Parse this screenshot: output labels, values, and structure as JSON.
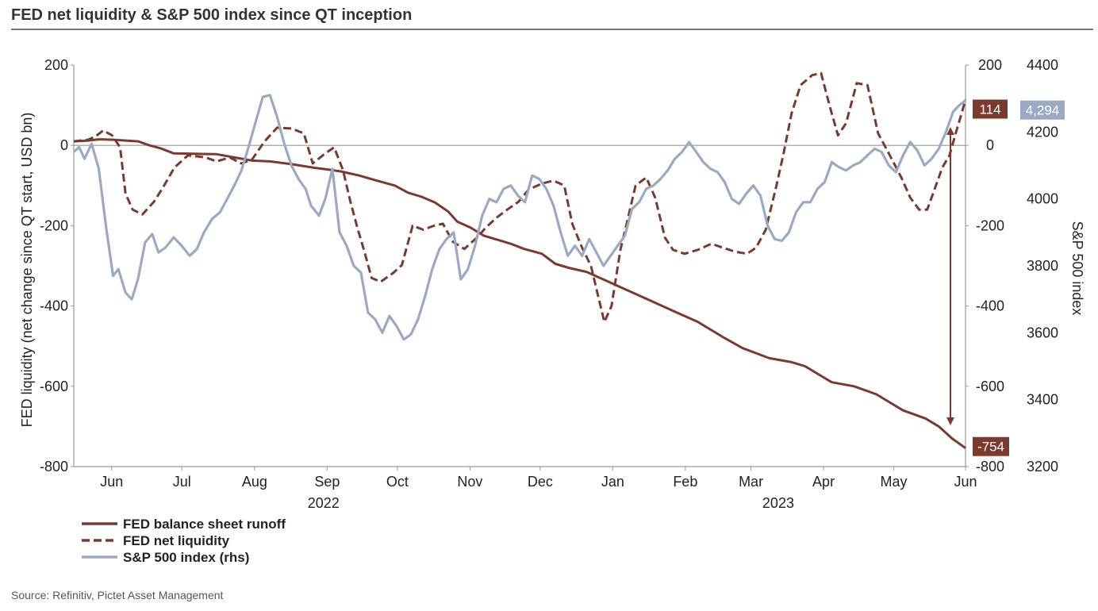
{
  "chart_data": {
    "type": "line",
    "title": "FED net liquidity & S&P 500 index since QT inception",
    "ylabel": "FED liquidity (net change since QT start, USD bn)",
    "y2label": "S&P 500 index",
    "ylim": [
      -800,
      200
    ],
    "y2lim": [
      3200,
      4400
    ],
    "yticks": [
      "200",
      "0",
      "-200",
      "-400",
      "-600",
      "-800"
    ],
    "yticks_right": [
      "200",
      "0",
      "-200",
      "-400",
      "-600",
      "-800"
    ],
    "y2ticks": [
      "4400",
      "4200",
      "4000",
      "3800",
      "3600",
      "3400",
      "3200"
    ],
    "x_months": [
      {
        "label": "Jun",
        "pos": 0.0425
      },
      {
        "label": "Jul",
        "pos": 0.1212
      },
      {
        "label": "Aug",
        "pos": 0.2027
      },
      {
        "label": "Sep",
        "pos": 0.2841
      },
      {
        "label": "Oct",
        "pos": 0.3629
      },
      {
        "label": "Nov",
        "pos": 0.4443
      },
      {
        "label": "Dec",
        "pos": 0.523
      },
      {
        "label": "Jan",
        "pos": 0.6044
      },
      {
        "label": "Feb",
        "pos": 0.6858
      },
      {
        "label": "Mar",
        "pos": 0.7594
      },
      {
        "label": "Apr",
        "pos": 0.8408
      },
      {
        "label": "May",
        "pos": 0.9195
      },
      {
        "label": "Jun",
        "pos": 1.0
      }
    ],
    "x_years": [
      {
        "label": "2022",
        "pos": 0.28
      },
      {
        "label": "2023",
        "pos": 0.79
      }
    ],
    "grid": false,
    "legend_position": "bottom-left",
    "series": [
      {
        "name": "FED balance sheet runoff",
        "axis": "left",
        "style": "solid",
        "color": "#7a3b2e",
        "points": [
          [
            0,
            10
          ],
          [
            0.016,
            12
          ],
          [
            0.028,
            15
          ],
          [
            0.044,
            14
          ],
          [
            0.072,
            10
          ],
          [
            0.085,
            0
          ],
          [
            0.098,
            -8
          ],
          [
            0.112,
            -20
          ],
          [
            0.16,
            -22
          ],
          [
            0.2,
            -38
          ],
          [
            0.22,
            -40
          ],
          [
            0.245,
            -47
          ],
          [
            0.27,
            -56
          ],
          [
            0.285,
            -60
          ],
          [
            0.3,
            -65
          ],
          [
            0.32,
            -75
          ],
          [
            0.34,
            -88
          ],
          [
            0.36,
            -100
          ],
          [
            0.375,
            -118
          ],
          [
            0.39,
            -128
          ],
          [
            0.405,
            -142
          ],
          [
            0.42,
            -165
          ],
          [
            0.43,
            -190
          ],
          [
            0.445,
            -205
          ],
          [
            0.46,
            -225
          ],
          [
            0.49,
            -245
          ],
          [
            0.505,
            -258
          ],
          [
            0.525,
            -270
          ],
          [
            0.54,
            -295
          ],
          [
            0.555,
            -305
          ],
          [
            0.575,
            -315
          ],
          [
            0.6,
            -340
          ],
          [
            0.62,
            -360
          ],
          [
            0.64,
            -380
          ],
          [
            0.66,
            -400
          ],
          [
            0.68,
            -420
          ],
          [
            0.7,
            -440
          ],
          [
            0.715,
            -460
          ],
          [
            0.73,
            -480
          ],
          [
            0.75,
            -505
          ],
          [
            0.78,
            -530
          ],
          [
            0.805,
            -540
          ],
          [
            0.82,
            -550
          ],
          [
            0.835,
            -570
          ],
          [
            0.85,
            -590
          ],
          [
            0.875,
            -600
          ],
          [
            0.9,
            -620
          ],
          [
            0.93,
            -660
          ],
          [
            0.955,
            -680
          ],
          [
            0.97,
            -700
          ],
          [
            0.985,
            -730
          ],
          [
            1.0,
            -754
          ]
        ]
      },
      {
        "name": "FED net liquidity",
        "axis": "left",
        "style": "dashed",
        "color": "#7a3b2e",
        "points": [
          [
            0,
            10
          ],
          [
            0.016,
            14
          ],
          [
            0.024,
            22
          ],
          [
            0.033,
            37
          ],
          [
            0.043,
            25
          ],
          [
            0.052,
            -5
          ],
          [
            0.058,
            -120
          ],
          [
            0.066,
            -160
          ],
          [
            0.077,
            -172
          ],
          [
            0.09,
            -140
          ],
          [
            0.1,
            -105
          ],
          [
            0.113,
            -55
          ],
          [
            0.128,
            -25
          ],
          [
            0.148,
            -30
          ],
          [
            0.16,
            -40
          ],
          [
            0.175,
            -30
          ],
          [
            0.188,
            -45
          ],
          [
            0.2,
            -35
          ],
          [
            0.214,
            10
          ],
          [
            0.228,
            44
          ],
          [
            0.244,
            42
          ],
          [
            0.258,
            30
          ],
          [
            0.268,
            -45
          ],
          [
            0.282,
            -20
          ],
          [
            0.292,
            -5
          ],
          [
            0.302,
            -62
          ],
          [
            0.31,
            -138
          ],
          [
            0.318,
            -205
          ],
          [
            0.326,
            -265
          ],
          [
            0.334,
            -330
          ],
          [
            0.344,
            -340
          ],
          [
            0.358,
            -318
          ],
          [
            0.368,
            -298
          ],
          [
            0.38,
            -200
          ],
          [
            0.392,
            -210
          ],
          [
            0.404,
            -200
          ],
          [
            0.414,
            -195
          ],
          [
            0.425,
            -240
          ],
          [
            0.438,
            -258
          ],
          [
            0.452,
            -230
          ],
          [
            0.462,
            -205
          ],
          [
            0.474,
            -180
          ],
          [
            0.486,
            -160
          ],
          [
            0.499,
            -140
          ],
          [
            0.51,
            -110
          ],
          [
            0.525,
            -95
          ],
          [
            0.538,
            -88
          ],
          [
            0.55,
            -100
          ],
          [
            0.559,
            -195
          ],
          [
            0.57,
            -255
          ],
          [
            0.58,
            -300
          ],
          [
            0.588,
            -375
          ],
          [
            0.595,
            -440
          ],
          [
            0.603,
            -400
          ],
          [
            0.613,
            -260
          ],
          [
            0.62,
            -195
          ],
          [
            0.63,
            -100
          ],
          [
            0.642,
            -80
          ],
          [
            0.652,
            -130
          ],
          [
            0.663,
            -230
          ],
          [
            0.672,
            -260
          ],
          [
            0.685,
            -270
          ],
          [
            0.7,
            -260
          ],
          [
            0.715,
            -245
          ],
          [
            0.728,
            -255
          ],
          [
            0.742,
            -265
          ],
          [
            0.755,
            -270
          ],
          [
            0.765,
            -255
          ],
          [
            0.776,
            -210
          ],
          [
            0.788,
            -100
          ],
          [
            0.796,
            -20
          ],
          [
            0.805,
            80
          ],
          [
            0.815,
            150
          ],
          [
            0.828,
            175
          ],
          [
            0.838,
            180
          ],
          [
            0.848,
            95
          ],
          [
            0.857,
            25
          ],
          [
            0.866,
            55
          ],
          [
            0.878,
            155
          ],
          [
            0.89,
            150
          ],
          [
            0.902,
            30
          ],
          [
            0.914,
            -20
          ],
          [
            0.928,
            -80
          ],
          [
            0.938,
            -130
          ],
          [
            0.948,
            -160
          ],
          [
            0.957,
            -160
          ],
          [
            0.966,
            -105
          ],
          [
            0.974,
            -55
          ],
          [
            0.982,
            -25
          ],
          [
            0.989,
            30
          ],
          [
            0.995,
            75
          ],
          [
            1.0,
            114
          ]
        ]
      },
      {
        "name": "S&P 500 index (rhs)",
        "axis": "right",
        "style": "solid",
        "color": "#9aa9c4",
        "points": [
          [
            0,
            4140
          ],
          [
            0.006,
            4155
          ],
          [
            0.012,
            4120
          ],
          [
            0.02,
            4165
          ],
          [
            0.028,
            4090
          ],
          [
            0.036,
            3920
          ],
          [
            0.044,
            3770
          ],
          [
            0.05,
            3790
          ],
          [
            0.058,
            3720
          ],
          [
            0.065,
            3700
          ],
          [
            0.072,
            3760
          ],
          [
            0.08,
            3870
          ],
          [
            0.088,
            3895
          ],
          [
            0.095,
            3840
          ],
          [
            0.103,
            3855
          ],
          [
            0.112,
            3885
          ],
          [
            0.121,
            3860
          ],
          [
            0.13,
            3830
          ],
          [
            0.138,
            3850
          ],
          [
            0.146,
            3900
          ],
          [
            0.155,
            3940
          ],
          [
            0.164,
            3960
          ],
          [
            0.172,
            4000
          ],
          [
            0.18,
            4040
          ],
          [
            0.188,
            4085
          ],
          [
            0.196,
            4155
          ],
          [
            0.205,
            4240
          ],
          [
            0.212,
            4305
          ],
          [
            0.22,
            4310
          ],
          [
            0.228,
            4245
          ],
          [
            0.236,
            4165
          ],
          [
            0.244,
            4100
          ],
          [
            0.252,
            4060
          ],
          [
            0.26,
            4030
          ],
          [
            0.266,
            3980
          ],
          [
            0.275,
            3950
          ],
          [
            0.282,
            4000
          ],
          [
            0.29,
            4090
          ],
          [
            0.298,
            3900
          ],
          [
            0.306,
            3860
          ],
          [
            0.314,
            3800
          ],
          [
            0.322,
            3780
          ],
          [
            0.33,
            3660
          ],
          [
            0.338,
            3640
          ],
          [
            0.346,
            3600
          ],
          [
            0.354,
            3650
          ],
          [
            0.362,
            3620
          ],
          [
            0.37,
            3580
          ],
          [
            0.378,
            3595
          ],
          [
            0.386,
            3640
          ],
          [
            0.394,
            3710
          ],
          [
            0.402,
            3790
          ],
          [
            0.41,
            3850
          ],
          [
            0.418,
            3880
          ],
          [
            0.426,
            3900
          ],
          [
            0.434,
            3760
          ],
          [
            0.442,
            3790
          ],
          [
            0.45,
            3860
          ],
          [
            0.458,
            3950
          ],
          [
            0.466,
            4000
          ],
          [
            0.474,
            3990
          ],
          [
            0.482,
            4030
          ],
          [
            0.49,
            4040
          ],
          [
            0.498,
            4010
          ],
          [
            0.506,
            3990
          ],
          [
            0.514,
            4070
          ],
          [
            0.522,
            4060
          ],
          [
            0.53,
            4030
          ],
          [
            0.538,
            3980
          ],
          [
            0.546,
            3900
          ],
          [
            0.554,
            3830
          ],
          [
            0.562,
            3860
          ],
          [
            0.57,
            3830
          ],
          [
            0.578,
            3880
          ],
          [
            0.586,
            3840
          ],
          [
            0.594,
            3800
          ],
          [
            0.602,
            3830
          ],
          [
            0.61,
            3860
          ],
          [
            0.618,
            3890
          ],
          [
            0.626,
            3970
          ],
          [
            0.634,
            3990
          ],
          [
            0.642,
            4030
          ],
          [
            0.65,
            4040
          ],
          [
            0.658,
            4060
          ],
          [
            0.666,
            4085
          ],
          [
            0.674,
            4120
          ],
          [
            0.682,
            4140
          ],
          [
            0.69,
            4170
          ],
          [
            0.698,
            4140
          ],
          [
            0.706,
            4110
          ],
          [
            0.714,
            4090
          ],
          [
            0.722,
            4080
          ],
          [
            0.73,
            4050
          ],
          [
            0.738,
            4000
          ],
          [
            0.746,
            3985
          ],
          [
            0.754,
            4015
          ],
          [
            0.762,
            4040
          ],
          [
            0.77,
            4010
          ],
          [
            0.778,
            3920
          ],
          [
            0.786,
            3880
          ],
          [
            0.794,
            3875
          ],
          [
            0.802,
            3900
          ],
          [
            0.81,
            3960
          ],
          [
            0.818,
            3990
          ],
          [
            0.826,
            3990
          ],
          [
            0.834,
            4030
          ],
          [
            0.842,
            4050
          ],
          [
            0.85,
            4110
          ],
          [
            0.858,
            4095
          ],
          [
            0.866,
            4085
          ],
          [
            0.874,
            4100
          ],
          [
            0.882,
            4110
          ],
          [
            0.89,
            4130
          ],
          [
            0.898,
            4150
          ],
          [
            0.906,
            4140
          ],
          [
            0.914,
            4100
          ],
          [
            0.922,
            4080
          ],
          [
            0.93,
            4130
          ],
          [
            0.938,
            4170
          ],
          [
            0.946,
            4145
          ],
          [
            0.954,
            4100
          ],
          [
            0.962,
            4120
          ],
          [
            0.97,
            4150
          ],
          [
            0.978,
            4200
          ],
          [
            0.986,
            4260
          ],
          [
            0.993,
            4280
          ],
          [
            1.0,
            4294
          ]
        ]
      }
    ],
    "end_labels": {
      "runoff": "-754",
      "net_liquidity": "114",
      "sp500": "4,294"
    },
    "colors": {
      "runoff": "#7a3b2e",
      "sp500": "#9aa9c4",
      "badge_dark": "#7a3b2e",
      "badge_light": "#9aa9c4"
    }
  },
  "source": "Source: Refinitiv, Pictet Asset Management"
}
